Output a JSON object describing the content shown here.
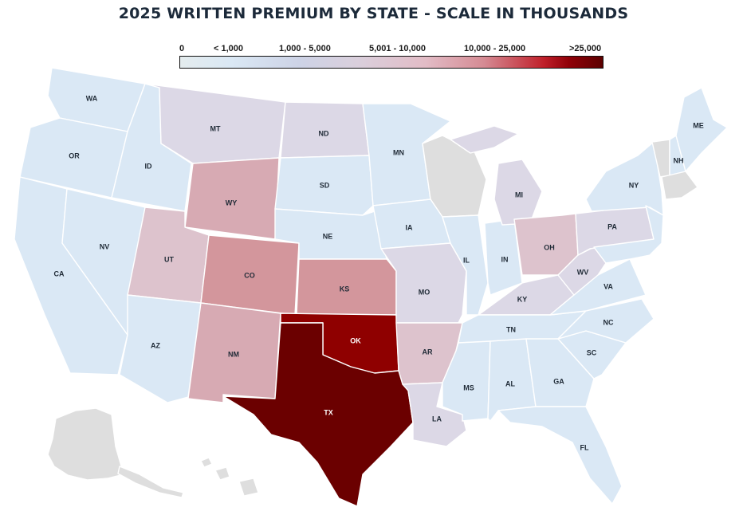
{
  "title": "2025 WRITTEN PREMIUM BY STATE - SCALE IN THOUSANDS",
  "legend": {
    "labels": [
      "0",
      "< 1,000",
      "1,000 - 5,000",
      "5,001 - 10,000",
      "10,000 - 25,000",
      ">25,000"
    ]
  },
  "colors": {
    "no_data": "#dedede",
    "lt_1000": "#dae8f5",
    "r1000_5000": "#dcd8e6",
    "r5001_10000": "#ddc3cd",
    "r10000_25000_low": "#d7aab3",
    "r10000_25000_high": "#d3969c",
    "ok": "#8f0000",
    "tx": "#6b0000"
  },
  "states": {
    "WA": "WA",
    "OR": "OR",
    "CA": "CA",
    "NV": "NV",
    "ID": "ID",
    "MT": "MT",
    "WY": "WY",
    "UT": "UT",
    "AZ": "AZ",
    "CO": "CO",
    "NM": "NM",
    "ND": "ND",
    "SD": "SD",
    "NE": "NE",
    "KS": "KS",
    "OK": "OK",
    "TX": "TX",
    "MN": "MN",
    "IA": "IA",
    "MO": "MO",
    "AR": "AR",
    "LA": "LA",
    "IL": "IL",
    "MI": "MI",
    "IN": "IN",
    "OH": "OH",
    "KY": "KY",
    "TN": "TN",
    "MS": "MS",
    "AL": "AL",
    "GA": "GA",
    "FL": "FL",
    "SC": "SC",
    "NC": "NC",
    "VA": "VA",
    "WV": "WV",
    "PA": "PA",
    "NY": "NY",
    "ME": "ME",
    "NH": "NH"
  }
}
